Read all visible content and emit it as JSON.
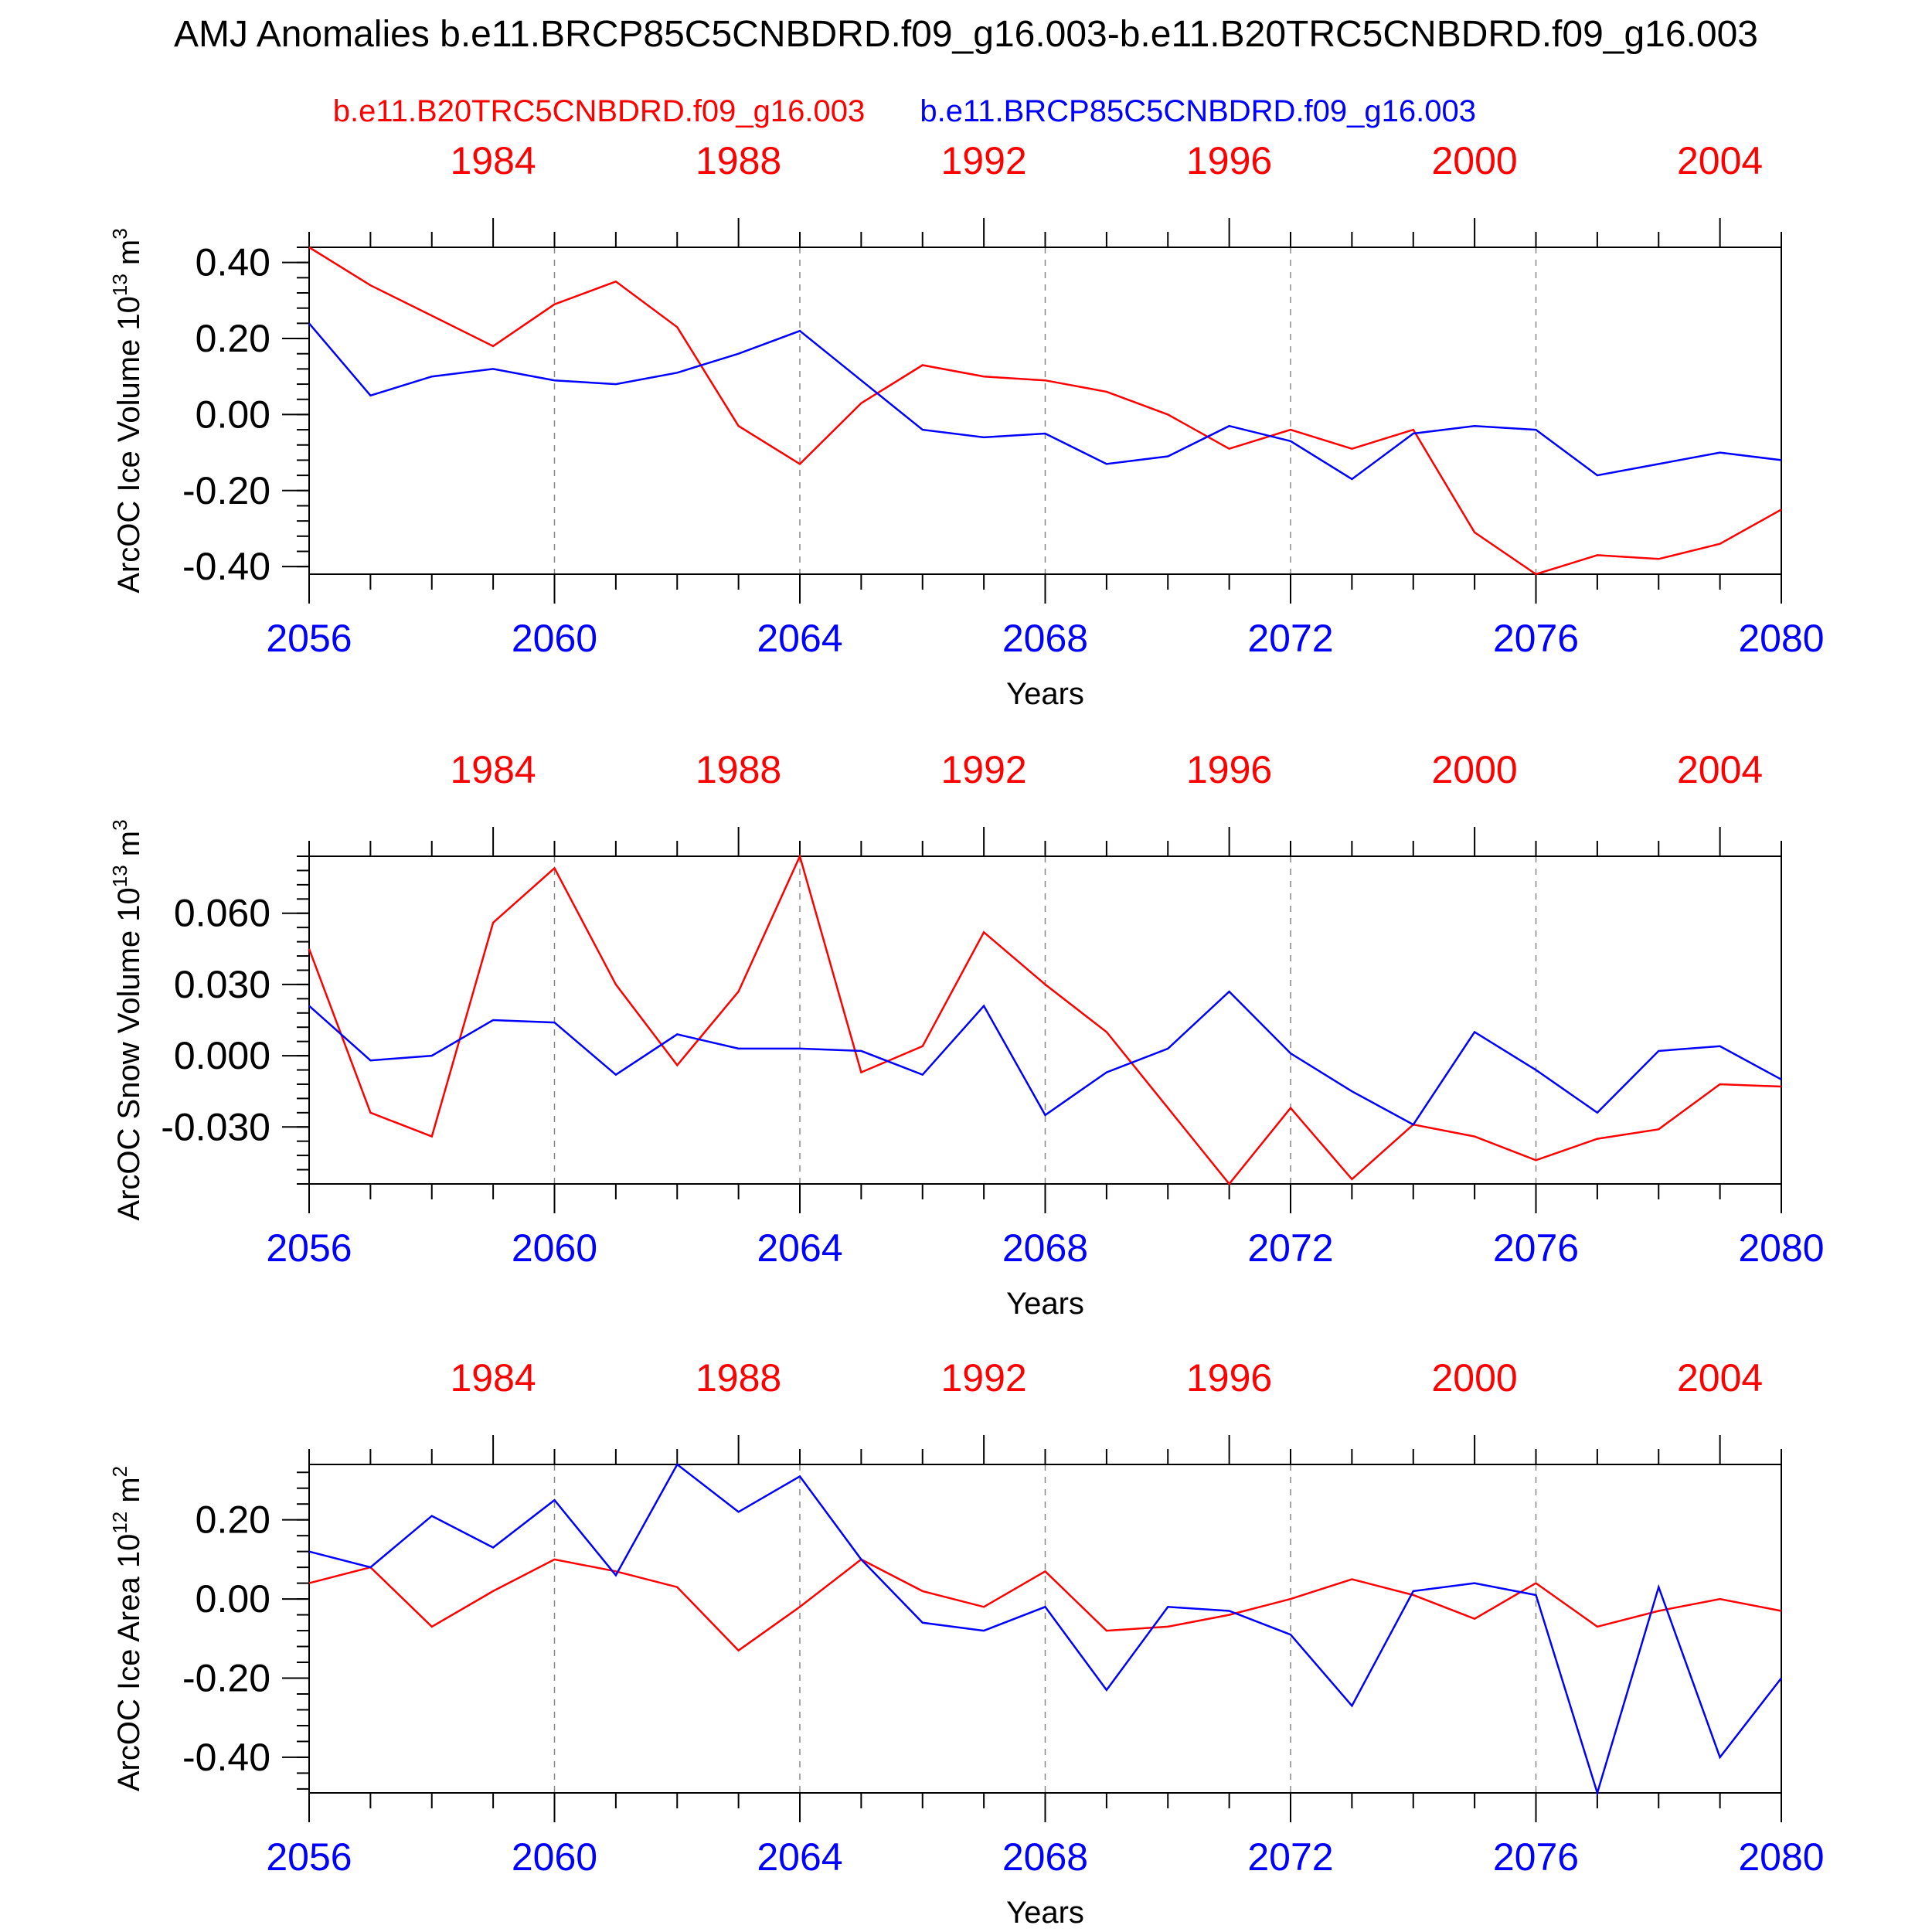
{
  "title": "AMJ Anomalies b.e11.BRCP85C5CNBDRD.f09_g16.003-b.e11.B20TRC5CNBDRD.f09_g16.003",
  "series_headers": {
    "left": "b.e11.B20TRC5CNBDRD.f09_g16.003",
    "right": "b.e11.BRCP85C5CNBDRD.f09_g16.003"
  },
  "colors": {
    "historical": "#ff0000",
    "future": "#0000ff",
    "axis": "#000000",
    "grid": "#888888"
  },
  "chart_data": [
    {
      "type": "line",
      "ylabel_main": "ArcOC Ice Volume 10",
      "ylabel_exp": "13",
      "ylabel_unit": " m",
      "ylabel_unit_exp": "3",
      "xlabel": "Years",
      "ylim": [
        -0.42,
        0.44
      ],
      "yticks": [
        0.4,
        0.2,
        0.0,
        -0.2,
        -0.4
      ],
      "ytick_labels": [
        "0.40",
        "0.20",
        "0.00",
        "-0.20",
        "-0.40"
      ],
      "yminor_step": 0.04,
      "bottom_ticks": [
        "2056",
        "2060",
        "2064",
        "2068",
        "2072",
        "2076",
        "2080"
      ],
      "top_ticks": [
        "1984",
        "1988",
        "1992",
        "1996",
        "2000",
        "2004"
      ],
      "series": [
        {
          "name": "b.e11.B20TRC5CNBDRD.f09_g16.003",
          "color": "#ff0000",
          "values": [
            0.44,
            0.34,
            0.26,
            0.18,
            0.29,
            0.35,
            0.23,
            -0.03,
            -0.13,
            0.03,
            0.13,
            0.1,
            0.09,
            0.06,
            0.0,
            -0.09,
            -0.04,
            -0.09,
            -0.04,
            -0.31,
            -0.42,
            -0.37,
            -0.38,
            -0.34,
            -0.25
          ]
        },
        {
          "name": "b.e11.BRCP85C5CNBDRD.f09_g16.003",
          "color": "#0000ff",
          "values": [
            0.24,
            0.05,
            0.1,
            0.12,
            0.09,
            0.08,
            0.11,
            0.16,
            0.22,
            0.09,
            -0.04,
            -0.06,
            -0.05,
            -0.13,
            -0.11,
            -0.03,
            -0.07,
            -0.17,
            -0.05,
            -0.03,
            -0.04,
            -0.16,
            -0.13,
            -0.1,
            -0.12
          ]
        }
      ]
    },
    {
      "type": "line",
      "ylabel_main": "ArcOC Snow Volume 10",
      "ylabel_exp": "13",
      "ylabel_unit": " m",
      "ylabel_unit_exp": "3",
      "xlabel": "Years",
      "ylim": [
        -0.054,
        0.084
      ],
      "yticks": [
        0.06,
        0.03,
        0.0,
        -0.03
      ],
      "ytick_labels": [
        "0.060",
        "0.030",
        "0.000",
        "-0.030"
      ],
      "yminor_step": 0.006,
      "bottom_ticks": [
        "2056",
        "2060",
        "2064",
        "2068",
        "2072",
        "2076",
        "2080"
      ],
      "top_ticks": [
        "1984",
        "1988",
        "1992",
        "1996",
        "2000",
        "2004"
      ],
      "series": [
        {
          "name": "b.e11.B20TRC5CNBDRD.f09_g16.003",
          "color": "#ff0000",
          "values": [
            0.045,
            -0.024,
            -0.034,
            0.056,
            0.079,
            0.03,
            -0.004,
            0.027,
            0.084,
            -0.007,
            0.004,
            0.052,
            0.03,
            0.01,
            -0.022,
            -0.054,
            -0.022,
            -0.052,
            -0.029,
            -0.034,
            -0.044,
            -0.035,
            -0.031,
            -0.012,
            -0.013
          ]
        },
        {
          "name": "b.e11.BRCP85C5CNBDRD.f09_g16.003",
          "color": "#0000ff",
          "values": [
            0.021,
            -0.002,
            0.0,
            0.015,
            0.014,
            -0.008,
            0.009,
            0.003,
            0.003,
            0.002,
            -0.008,
            0.021,
            -0.025,
            -0.007,
            0.003,
            0.027,
            0.001,
            -0.015,
            -0.029,
            0.01,
            -0.006,
            -0.024,
            0.002,
            0.004,
            -0.01
          ]
        }
      ]
    },
    {
      "type": "line",
      "ylabel_main": "ArcOC Ice Area 10",
      "ylabel_exp": "12",
      "ylabel_unit": " m",
      "ylabel_unit_exp": "2",
      "xlabel": "Years",
      "ylim": [
        -0.49,
        0.34
      ],
      "yticks": [
        0.2,
        0.0,
        -0.2,
        -0.4
      ],
      "ytick_labels": [
        "0.20",
        "0.00",
        "-0.20",
        "-0.40"
      ],
      "yminor_step": 0.04,
      "bottom_ticks": [
        "2056",
        "2060",
        "2064",
        "2068",
        "2072",
        "2076",
        "2080"
      ],
      "top_ticks": [
        "1984",
        "1988",
        "1992",
        "1996",
        "2000",
        "2004"
      ],
      "series": [
        {
          "name": "b.e11.B20TRC5CNBDRD.f09_g16.003",
          "color": "#ff0000",
          "values": [
            0.04,
            0.08,
            -0.07,
            0.02,
            0.1,
            0.07,
            0.03,
            -0.13,
            -0.02,
            0.1,
            0.02,
            -0.02,
            0.07,
            -0.08,
            -0.07,
            -0.04,
            0.0,
            0.05,
            0.01,
            -0.05,
            0.04,
            -0.07,
            -0.03,
            0.0,
            -0.03
          ]
        },
        {
          "name": "b.e11.BRCP85C5CNBDRD.f09_g16.003",
          "color": "#0000ff",
          "values": [
            0.12,
            0.08,
            0.21,
            0.13,
            0.25,
            0.06,
            0.34,
            0.22,
            0.31,
            0.1,
            -0.06,
            -0.08,
            -0.02,
            -0.23,
            -0.02,
            -0.03,
            -0.09,
            -0.27,
            0.02,
            0.04,
            0.01,
            -0.49,
            0.03,
            -0.4,
            -0.2
          ]
        }
      ]
    }
  ]
}
